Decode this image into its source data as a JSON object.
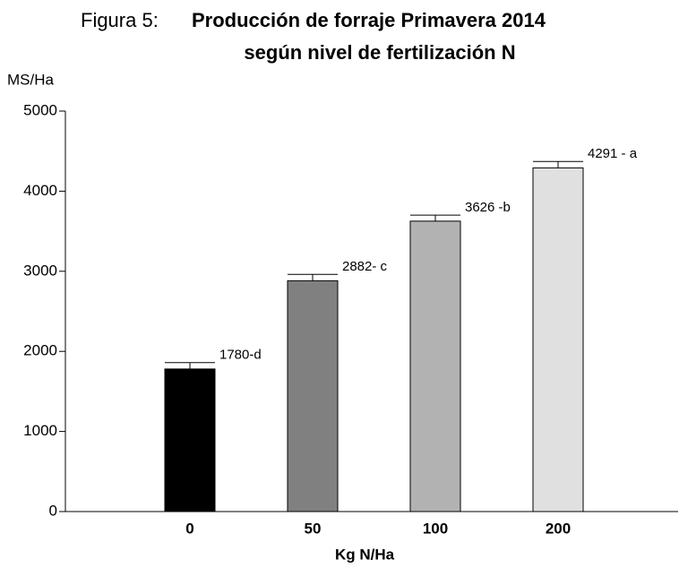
{
  "chart_data": {
    "type": "bar",
    "figure_label": "Figura 5:",
    "title": "Producción de forraje Primavera 2014",
    "subtitle": "según nivel de fertilización N",
    "y_label": "MS/Ha",
    "x_label": "Kg N/Ha",
    "categories": [
      "0",
      "50",
      "100",
      "200"
    ],
    "values": [
      1780,
      2882,
      3626,
      4291
    ],
    "errors": [
      80,
      80,
      75,
      80
    ],
    "value_labels": [
      "1780-d",
      "2882- c",
      "3626 -b",
      "4291 - a"
    ],
    "colors": [
      "#000000",
      "#808080",
      "#b2b2b2",
      "#e0e0e0"
    ],
    "ylim": [
      0,
      5000
    ],
    "yticks": [
      0,
      1000,
      2000,
      3000,
      4000,
      5000
    ]
  }
}
